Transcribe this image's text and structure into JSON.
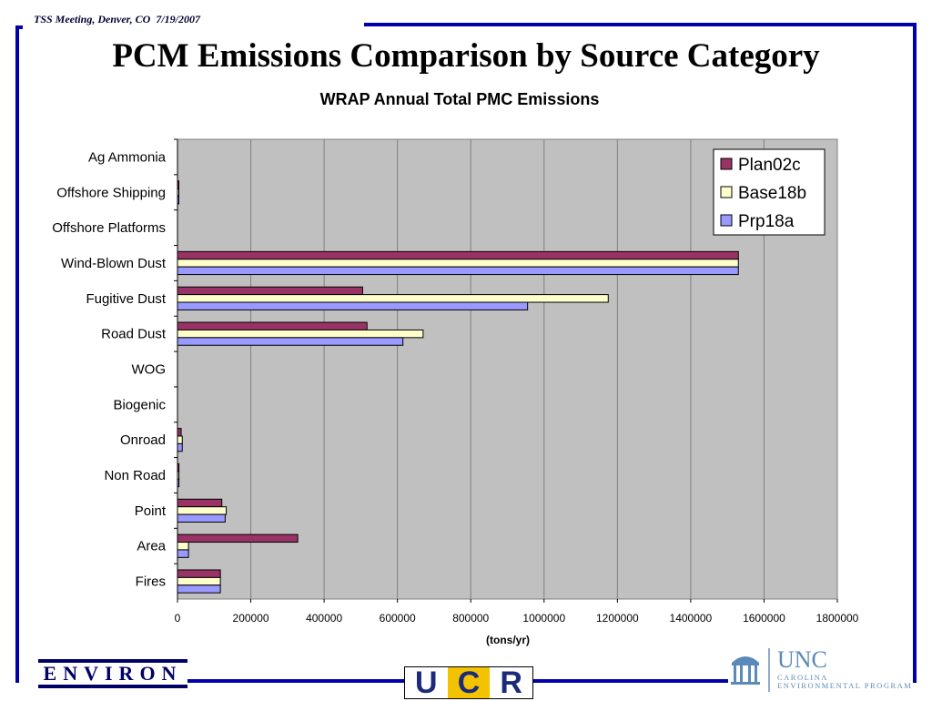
{
  "header": {
    "meeting_text": "TSS Meeting, Denver, CO  7/19/2007"
  },
  "slide": {
    "title": "PCM Emissions Comparison by Source Category"
  },
  "colors": {
    "frame": "#0000aa",
    "plot_background": "#c0c0c0",
    "gridline": "#808080",
    "Plan02c": "#993366",
    "Base18b": "#ffffcc",
    "Prp18a": "#9999ff"
  },
  "chart_data": {
    "type": "bar",
    "orientation": "horizontal",
    "title": "WRAP Annual Total PMC Emissions",
    "xlabel": "(tons/yr)",
    "ylabel": "",
    "xlim": [
      0,
      1800000
    ],
    "xticks": [
      "0",
      "200000",
      "400000",
      "600000",
      "800000",
      "1000000",
      "1200000",
      "1400000",
      "1600000",
      "1800000"
    ],
    "grid": true,
    "legend_position": "top-right",
    "categories": [
      "Ag Ammonia",
      "Offshore Shipping",
      "Offshore Platforms",
      "Wind-Blown Dust",
      "Fugitive Dust",
      "Road Dust",
      "WOG",
      "Biogenic",
      "Onroad",
      "Non Road",
      "Point",
      "Area",
      "Fires"
    ],
    "series": [
      {
        "name": "Plan02c",
        "color": "#993366",
        "values": [
          0,
          2000,
          0,
          1530000,
          505000,
          517000,
          0,
          0,
          10000,
          4000,
          121000,
          328000,
          117000
        ]
      },
      {
        "name": "Base18b",
        "color": "#ffffcc",
        "values": [
          0,
          2000,
          0,
          1530000,
          1175000,
          670000,
          0,
          0,
          13000,
          4000,
          133000,
          30000,
          117000
        ]
      },
      {
        "name": "Prp18a",
        "color": "#9999ff",
        "values": [
          0,
          2000,
          0,
          1530000,
          955000,
          615000,
          0,
          0,
          13000,
          4000,
          130000,
          30000,
          117000
        ]
      }
    ]
  },
  "logos": {
    "environ": "ENVIRON",
    "ucr_letters": [
      "U",
      "C",
      "R"
    ],
    "unc_big": "UNC",
    "unc_small_line1": "CAROLINA",
    "unc_small_line2": "ENVIRONMENTAL PROGRAM"
  }
}
